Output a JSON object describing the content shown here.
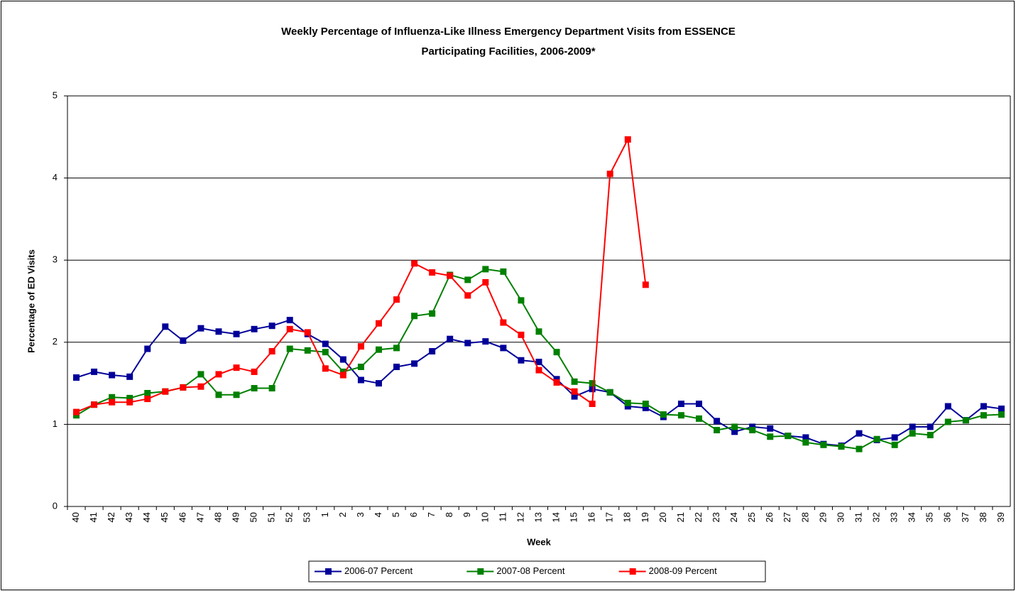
{
  "chart_data": {
    "type": "line",
    "title": [
      "Weekly Percentage of Influenza-Like Illness Emergency Department Visits from ESSENCE",
      "Participating Facilities, 2006-2009*"
    ],
    "x_label": "Week",
    "y_label": "Percentage of ED Visits",
    "categories": [
      "40",
      "41",
      "42",
      "43",
      "44",
      "45",
      "46",
      "47",
      "48",
      "49",
      "50",
      "51",
      "52",
      "53",
      "1",
      "2",
      "3",
      "4",
      "5",
      "6",
      "7",
      "8",
      "9",
      "10",
      "11",
      "12",
      "13",
      "14",
      "15",
      "16",
      "17",
      "18",
      "19",
      "20",
      "21",
      "22",
      "23",
      "24",
      "25",
      "26",
      "27",
      "28",
      "29",
      "30",
      "31",
      "32",
      "33",
      "34",
      "35",
      "36",
      "37",
      "38",
      "39"
    ],
    "series": [
      {
        "name": "2006-07 Percent",
        "color": "#000099",
        "values": [
          1.57,
          1.64,
          1.6,
          1.58,
          1.92,
          2.19,
          2.02,
          2.17,
          2.13,
          2.1,
          2.16,
          2.2,
          2.27,
          2.1,
          1.98,
          1.79,
          1.54,
          1.5,
          1.7,
          1.74,
          1.89,
          2.04,
          1.99,
          2.01,
          1.93,
          1.78,
          1.76,
          1.55,
          1.34,
          1.43,
          1.39,
          1.22,
          1.2,
          1.09,
          1.25,
          1.25,
          1.04,
          0.91,
          0.97,
          0.95,
          0.86,
          0.84,
          0.76,
          0.74,
          0.89,
          0.81,
          0.84,
          0.97,
          0.97,
          1.22,
          1.05,
          1.22,
          1.19
        ]
      },
      {
        "name": "2007-08 Percent",
        "color": "#008000",
        "values": [
          1.11,
          1.24,
          1.33,
          1.32,
          1.38,
          1.4,
          1.45,
          1.61,
          1.36,
          1.36,
          1.44,
          1.44,
          1.92,
          1.9,
          1.88,
          1.64,
          1.7,
          1.91,
          1.93,
          2.32,
          2.35,
          2.82,
          2.76,
          2.89,
          2.86,
          2.51,
          2.13,
          1.88,
          1.52,
          1.5,
          1.39,
          1.26,
          1.25,
          1.12,
          1.11,
          1.07,
          0.93,
          0.97,
          0.93,
          0.85,
          0.86,
          0.78,
          0.75,
          0.73,
          0.7,
          0.82,
          0.75,
          0.89,
          0.87,
          1.03,
          1.05,
          1.11,
          1.12
        ]
      },
      {
        "name": "2008-09 Percent",
        "color": "#ff0000",
        "values": [
          1.15,
          1.24,
          1.27,
          1.27,
          1.31,
          1.4,
          1.45,
          1.46,
          1.61,
          1.69,
          1.64,
          1.89,
          2.16,
          2.12,
          1.68,
          1.6,
          1.95,
          2.23,
          2.52,
          2.96,
          2.85,
          2.81,
          2.57,
          2.73,
          2.24,
          2.09,
          1.66,
          1.51,
          1.4,
          1.25,
          4.05,
          4.47,
          2.7,
          null,
          null,
          null,
          null,
          null,
          null,
          null,
          null,
          null,
          null,
          null,
          null,
          null,
          null,
          null,
          null,
          null,
          null,
          null,
          null
        ]
      }
    ],
    "ylim": [
      0,
      5
    ],
    "yticks": [
      0,
      1,
      2,
      3,
      4,
      5
    ],
    "grid": true,
    "legend": "bottom"
  }
}
